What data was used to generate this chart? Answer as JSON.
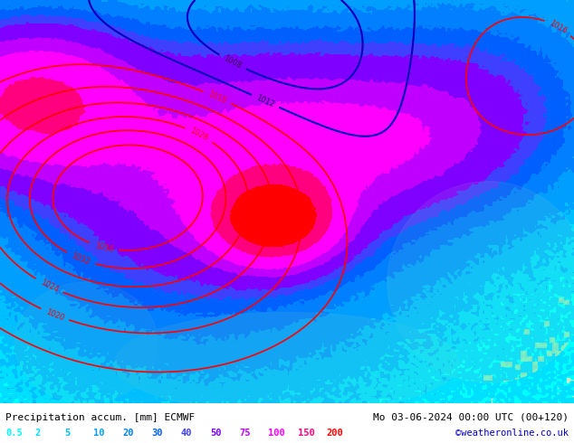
{
  "title_left": "Precipitation accum. [mm] ECMWF",
  "title_right": "Mo 03-06-2024 00:00 UTC (00+120)",
  "credit": "©weatheronline.co.uk",
  "legend_values": [
    "0.5",
    "2",
    "5",
    "10",
    "20",
    "30",
    "40",
    "50",
    "75",
    "100",
    "150",
    "200"
  ],
  "legend_colors": [
    "#00ffff",
    "#00dfff",
    "#00bfff",
    "#009fff",
    "#007fff",
    "#005fff",
    "#3f3fff",
    "#7f00ff",
    "#bf00ff",
    "#ff00ff",
    "#ff007f",
    "#ff0000"
  ],
  "bg_color": "#c8f0c8",
  "map_bg": "#87ceeb",
  "bottom_bar_color": "#000000",
  "bottom_bg": "#ffffff",
  "label_color_left": "#000000",
  "label_color_right": "#000000",
  "credit_color": "#0000cc",
  "figsize": [
    6.34,
    4.9
  ],
  "dpi": 100
}
